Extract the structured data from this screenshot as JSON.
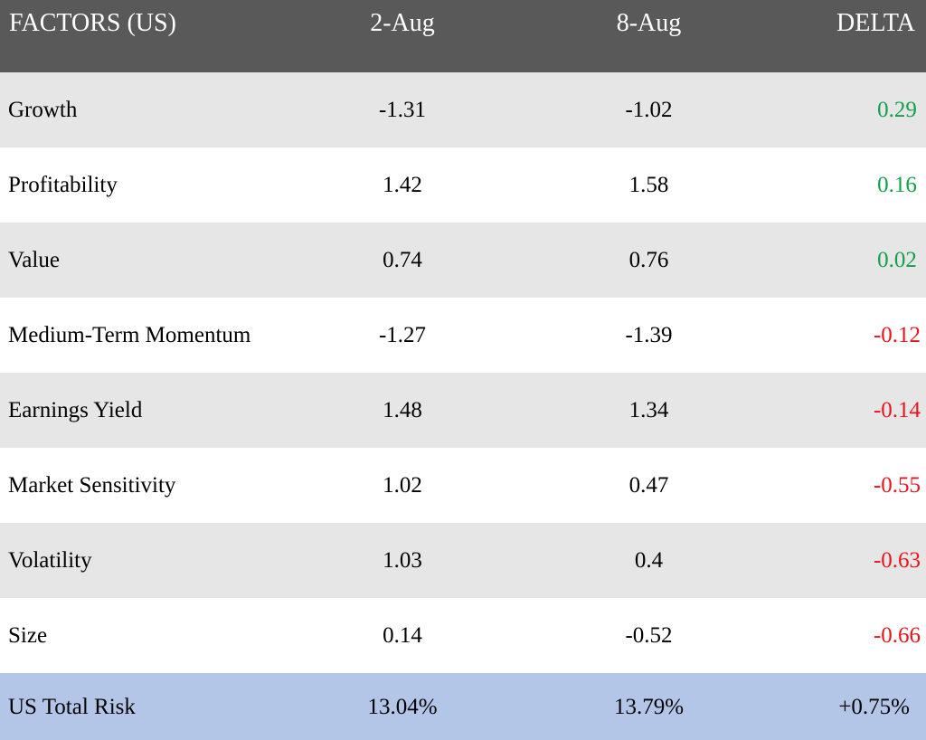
{
  "header": {
    "factor_label": "FACTORS (US)",
    "date1": "2-Aug",
    "date2": "8-Aug",
    "delta_label": "DELTA"
  },
  "rows": [
    {
      "factor": "Growth",
      "v1": "-1.31",
      "v2": "-1.02",
      "delta": "0.29",
      "sign": "pos"
    },
    {
      "factor": "Profitability",
      "v1": "1.42",
      "v2": "1.58",
      "delta": "0.16",
      "sign": "pos"
    },
    {
      "factor": "Value",
      "v1": "0.74",
      "v2": "0.76",
      "delta": "0.02",
      "sign": "pos"
    },
    {
      "factor": "Medium-Term Momentum",
      "v1": "-1.27",
      "v2": "-1.39",
      "delta": "-0.12",
      "sign": "neg"
    },
    {
      "factor": "Earnings Yield",
      "v1": "1.48",
      "v2": "1.34",
      "delta": "-0.14",
      "sign": "neg"
    },
    {
      "factor": "Market Sensitivity",
      "v1": "1.02",
      "v2": "0.47",
      "delta": "-0.55",
      "sign": "neg"
    },
    {
      "factor": "Volatility",
      "v1": "1.03",
      "v2": "0.4",
      "delta": "-0.63",
      "sign": "neg"
    },
    {
      "factor": "Size",
      "v1": "0.14",
      "v2": "-0.52",
      "delta": "-0.66",
      "sign": "neg"
    }
  ],
  "total": {
    "label": "US Total Risk",
    "v1": "13.04%",
    "v2": "13.79%",
    "delta": "+0.75%"
  },
  "colors": {
    "header_bg": "#595959",
    "row_alt_bg": "#e6e6e6",
    "total_bg": "#b4c6e7",
    "positive": "#13a04a",
    "negative": "#e8141c"
  }
}
